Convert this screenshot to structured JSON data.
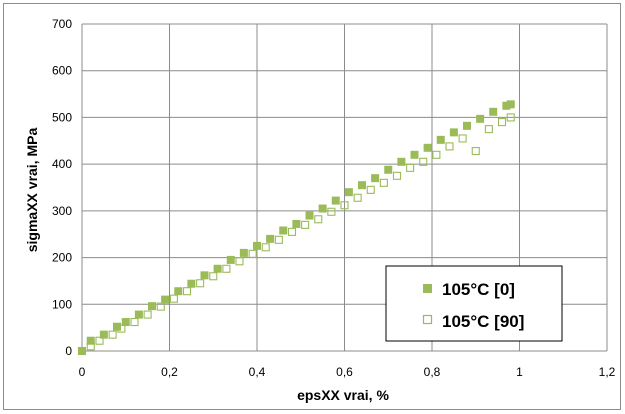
{
  "chart_data": {
    "type": "scatter",
    "xlabel": "epsXX vrai, %",
    "ylabel": "sigmaXX vrai, MPa",
    "xlim": [
      0,
      1.2
    ],
    "ylim": [
      0,
      700
    ],
    "x_ticks": [
      "0",
      "0,2",
      "0,4",
      "0,6",
      "0,8",
      "1",
      "1,2"
    ],
    "y_ticks": [
      "0",
      "100",
      "200",
      "300",
      "400",
      "500",
      "600",
      "700"
    ],
    "grid": true,
    "legend_position": "bottom-right",
    "series": [
      {
        "name": "105°C [0]",
        "marker": "filled-square",
        "color": "#9bbb59",
        "x": [
          0,
          0.02,
          0.05,
          0.08,
          0.1,
          0.13,
          0.16,
          0.19,
          0.22,
          0.25,
          0.28,
          0.31,
          0.34,
          0.37,
          0.4,
          0.43,
          0.46,
          0.49,
          0.52,
          0.55,
          0.58,
          0.61,
          0.64,
          0.67,
          0.7,
          0.73,
          0.76,
          0.79,
          0.82,
          0.85,
          0.88,
          0.91,
          0.94,
          0.97,
          0.98
        ],
        "y": [
          0,
          22,
          35,
          52,
          62,
          78,
          96,
          110,
          128,
          144,
          162,
          176,
          195,
          210,
          225,
          240,
          258,
          272,
          290,
          305,
          322,
          340,
          355,
          370,
          388,
          405,
          420,
          435,
          452,
          468,
          482,
          497,
          512,
          525,
          528
        ]
      },
      {
        "name": "105°C [90]",
        "marker": "open-square",
        "color": "#9bbb59",
        "x": [
          0,
          0.02,
          0.04,
          0.07,
          0.09,
          0.12,
          0.15,
          0.18,
          0.21,
          0.24,
          0.27,
          0.3,
          0.33,
          0.36,
          0.39,
          0.42,
          0.45,
          0.48,
          0.51,
          0.54,
          0.57,
          0.6,
          0.63,
          0.66,
          0.69,
          0.72,
          0.75,
          0.78,
          0.81,
          0.84,
          0.87,
          0.9,
          0.93,
          0.96,
          0.98
        ],
        "y": [
          0,
          10,
          22,
          35,
          48,
          62,
          78,
          95,
          112,
          128,
          145,
          160,
          176,
          192,
          208,
          222,
          238,
          255,
          270,
          282,
          298,
          312,
          328,
          345,
          360,
          375,
          392,
          405,
          420,
          438,
          455,
          428,
          475,
          490,
          500
        ]
      }
    ]
  }
}
